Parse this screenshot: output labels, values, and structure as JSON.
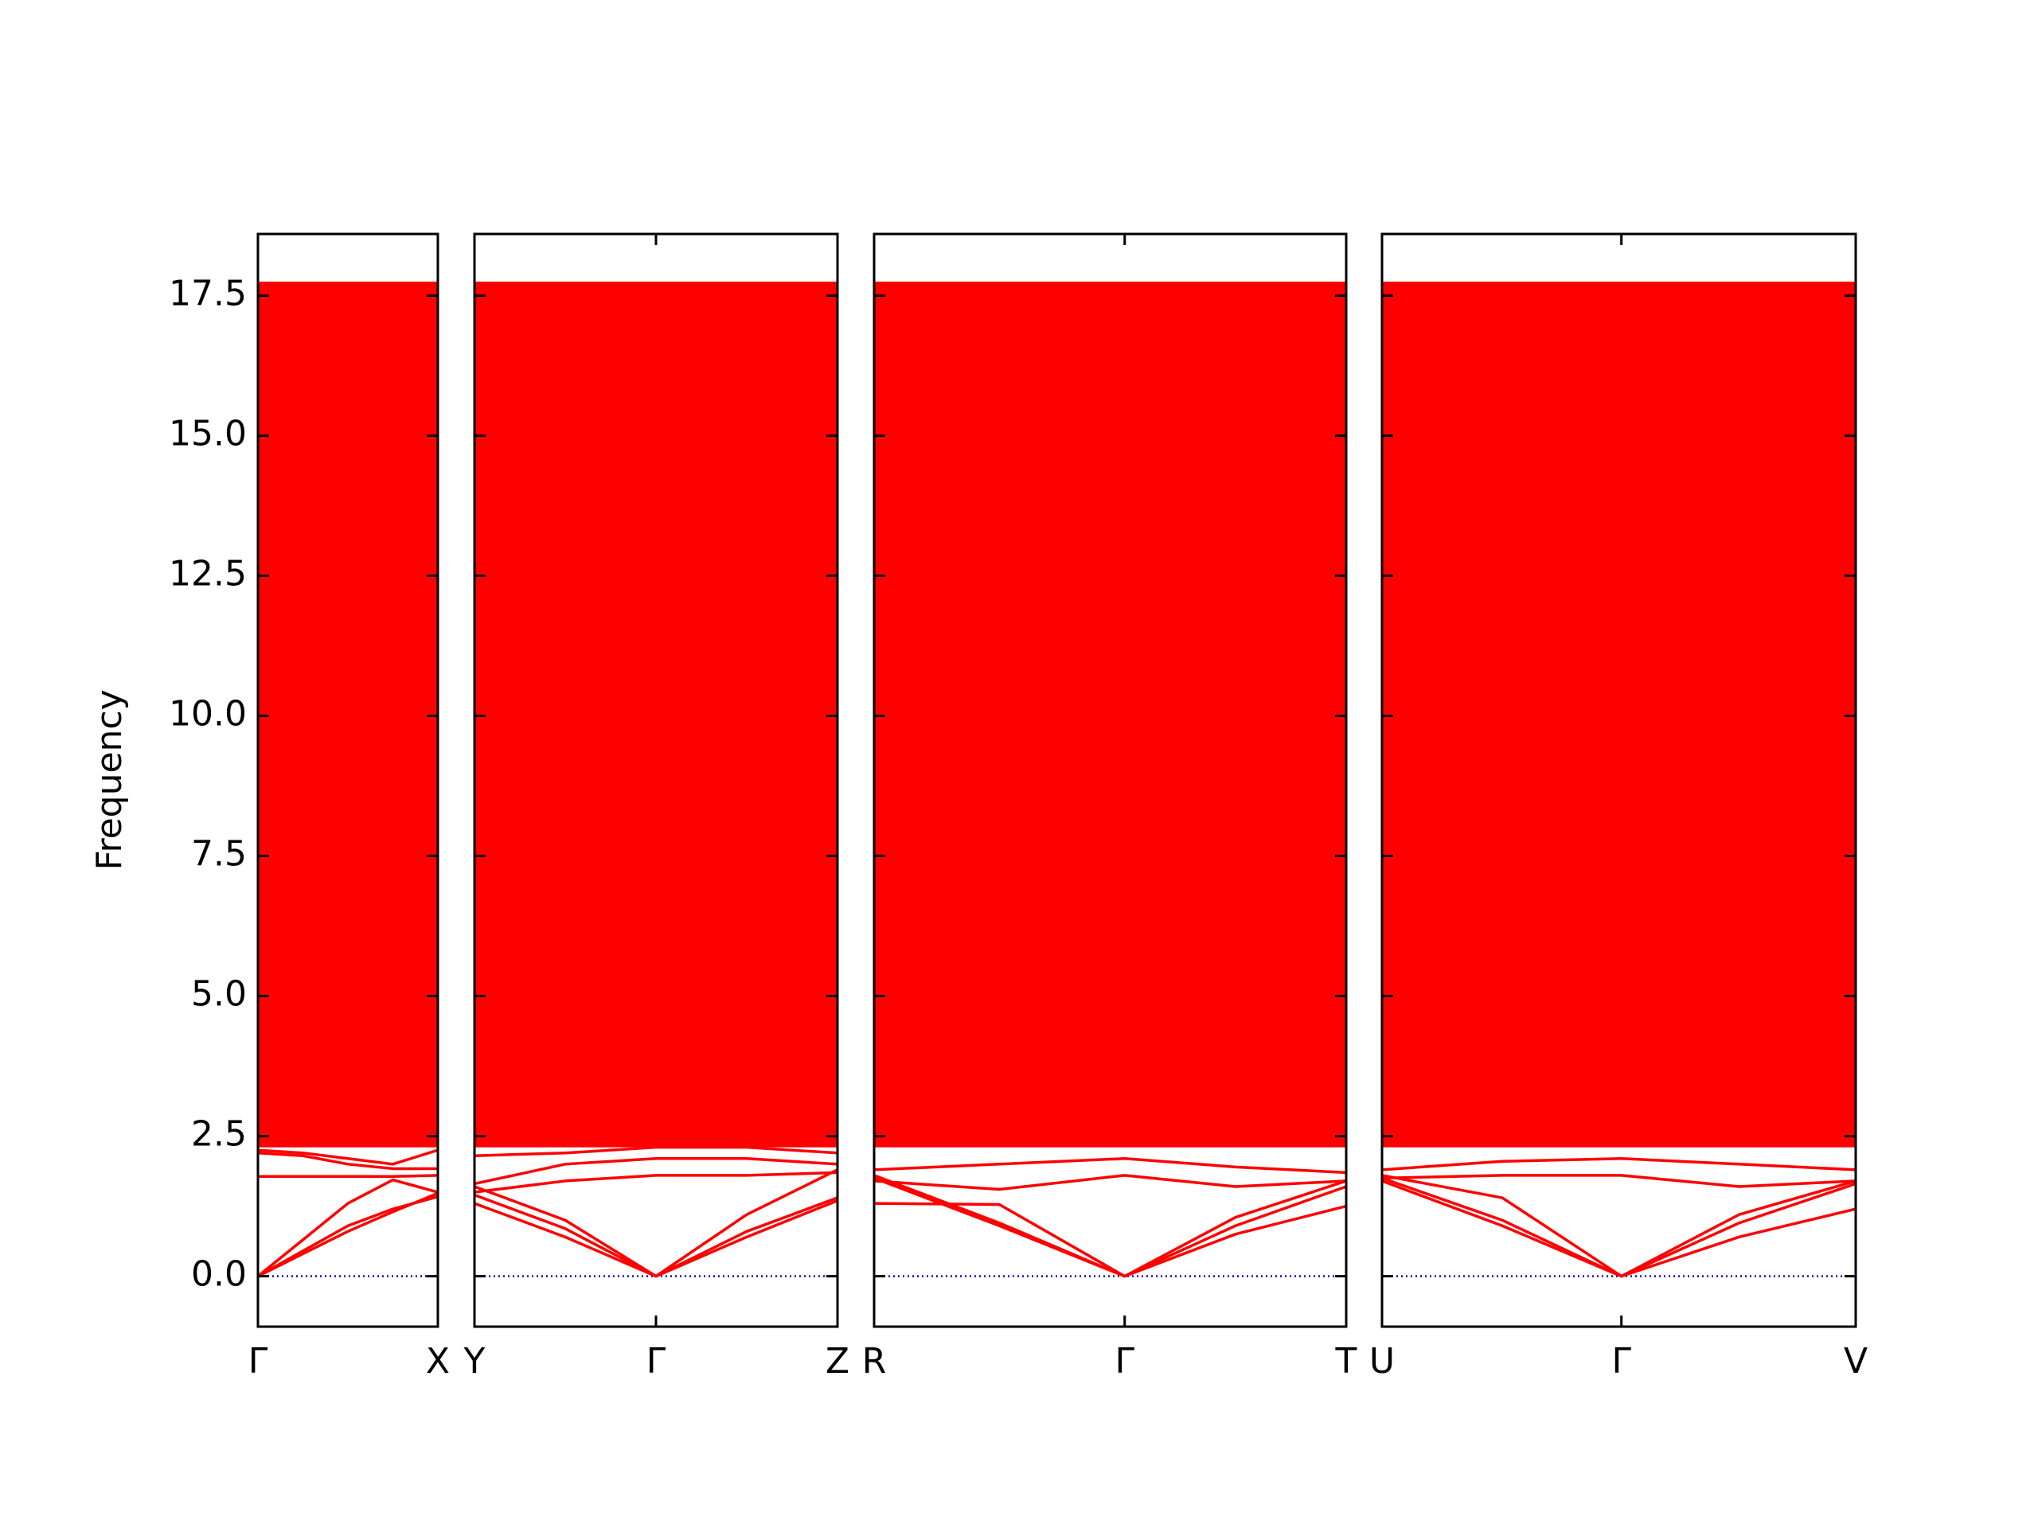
{
  "chart_data": {
    "type": "band_structure",
    "y_label": "Frequency",
    "ylim": [
      -0.9,
      18.6
    ],
    "yticks": [
      {
        "value": 0,
        "label": "0.0"
      },
      2.5,
      {
        "value": 5,
        "label": "5.0"
      },
      7.5,
      {
        "value": 10,
        "label": "10.0"
      },
      12.5,
      {
        "value": 15,
        "label": "15.0"
      },
      17.5
    ],
    "band_color": "#ff0000",
    "zero_line": 0,
    "zero_line_color": "#0000cc",
    "panels": [
      {
        "xlim": [
          0,
          0.5
        ],
        "xticks": [
          {
            "value": 0,
            "label": "Γ"
          },
          {
            "value": 0.5,
            "label": "X"
          }
        ],
        "x": [
          0,
          0.125,
          0.25,
          0.375,
          0.5
        ],
        "dense_range": [
          2.3,
          17.75
        ],
        "bands": [
          [
            0,
            0.45,
            0.9,
            1.2,
            1.42
          ],
          [
            0,
            0.4,
            0.8,
            1.15,
            1.48
          ],
          [
            0,
            0.65,
            1.3,
            1.72,
            1.5
          ],
          [
            1.78,
            1.78,
            1.78,
            1.78,
            1.8
          ],
          [
            2.2,
            2.15,
            2.0,
            1.92,
            1.92
          ],
          [
            2.25,
            2.2,
            2.1,
            2.0,
            2.25
          ]
        ]
      },
      {
        "xlim": [
          0,
          1
        ],
        "xticks": [
          {
            "value": 0,
            "label": "Y"
          },
          {
            "value": 0.5,
            "label": "Γ"
          },
          {
            "value": 1,
            "label": "Z"
          }
        ],
        "x": [
          0,
          0.25,
          0.5,
          0.75,
          1
        ],
        "dense_range": [
          2.3,
          17.75
        ],
        "bands": [
          [
            1.3,
            0.7,
            0,
            0.7,
            1.35
          ],
          [
            1.45,
            0.85,
            0,
            0.8,
            1.4
          ],
          [
            1.6,
            1.0,
            0,
            1.1,
            1.9
          ],
          [
            1.5,
            1.7,
            1.8,
            1.8,
            1.85
          ],
          [
            1.65,
            2.0,
            2.1,
            2.1,
            2.0
          ],
          [
            2.15,
            2.2,
            2.3,
            2.3,
            2.2
          ]
        ]
      },
      {
        "xlim": [
          0,
          1.3
        ],
        "xticks": [
          {
            "value": 0,
            "label": "R"
          },
          {
            "value": 0.69,
            "label": "Γ"
          },
          {
            "value": 1.3,
            "label": "T"
          }
        ],
        "x": [
          0,
          0.345,
          0.69,
          0.995,
          1.3
        ],
        "dense_range": [
          2.3,
          17.75
        ],
        "bands": [
          [
            1.75,
            0.9,
            0,
            0.75,
            1.25
          ],
          [
            1.8,
            0.95,
            0,
            0.9,
            1.6
          ],
          [
            1.3,
            1.28,
            0,
            1.05,
            1.7
          ],
          [
            1.7,
            1.55,
            1.8,
            1.6,
            1.7
          ],
          [
            1.9,
            2.0,
            2.1,
            1.95,
            1.85
          ]
        ]
      },
      {
        "xlim": [
          0,
          1.3
        ],
        "xticks": [
          {
            "value": 0,
            "label": "U"
          },
          {
            "value": 0.657,
            "label": "Γ"
          },
          {
            "value": 1.3,
            "label": "V"
          }
        ],
        "x": [
          0,
          0.33,
          0.657,
          0.98,
          1.3
        ],
        "dense_range": [
          2.3,
          17.75
        ],
        "bands": [
          [
            1.7,
            0.9,
            0,
            0.7,
            1.2
          ],
          [
            1.75,
            1.0,
            0,
            0.95,
            1.65
          ],
          [
            1.8,
            1.4,
            0,
            1.1,
            1.7
          ],
          [
            1.75,
            1.8,
            1.8,
            1.6,
            1.7
          ],
          [
            1.9,
            2.05,
            2.1,
            2.0,
            1.9
          ]
        ]
      }
    ]
  }
}
